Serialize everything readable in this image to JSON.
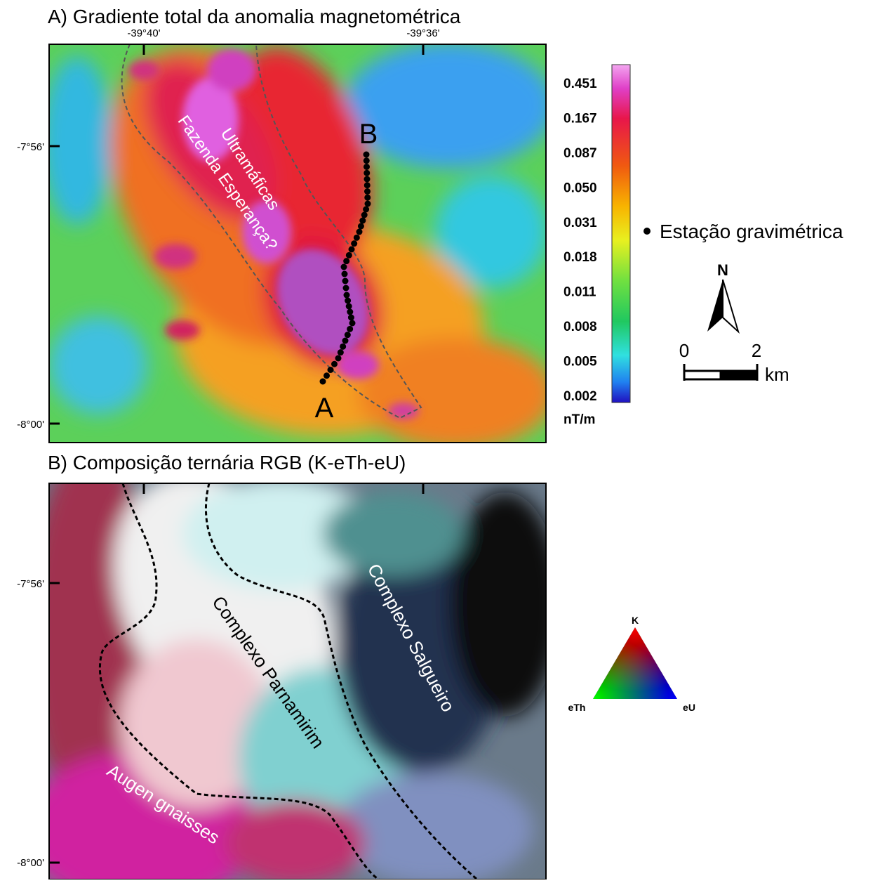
{
  "panel_a": {
    "title": "A) Gradiente total da anomalia magnetométrica",
    "longitude_labels": [
      "-39°40'",
      "-39°36'"
    ],
    "latitude_labels": [
      "-7°56'",
      "-8°00'"
    ],
    "map_labels": [
      "Ultramáficas",
      "Fazenda Esperança?"
    ],
    "profile_start": "A",
    "profile_end": "B",
    "colorbar": {
      "labels": [
        "0.451",
        "0.167",
        "0.087",
        "0.050",
        "0.031",
        "0.018",
        "0.011",
        "0.008",
        "0.005",
        "0.002"
      ],
      "unit": "nT/m"
    },
    "legend": "Estação gravimétrica",
    "north": "N",
    "scale": {
      "labels": [
        "0",
        "2"
      ],
      "unit": "km"
    }
  },
  "panel_b": {
    "title": "B) Composição ternária RGB (K-eTh-eU)",
    "latitude_labels": [
      "-7°56'",
      "-8°00'"
    ],
    "map_labels": [
      "Complexo Parnamirim",
      "Complexo Salgueiro",
      "Augen gnaisses"
    ],
    "ternary": [
      "K",
      "eTh",
      "eU"
    ]
  }
}
